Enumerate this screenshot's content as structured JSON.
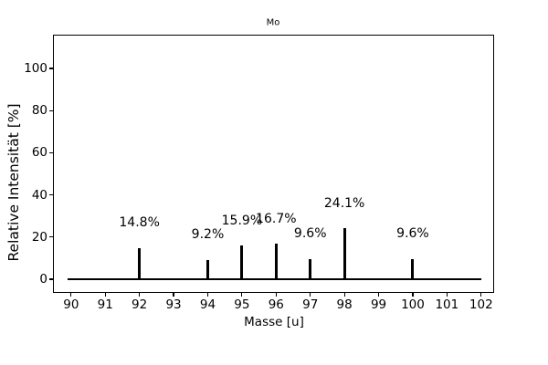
{
  "chart_data": {
    "type": "bar",
    "subtype": "stem",
    "title": "Mo",
    "xlabel": "Masse [u]",
    "ylabel": "Relative Intensität [%]",
    "x": [
      92,
      94,
      95,
      96,
      97,
      98,
      100
    ],
    "values": [
      14.8,
      9.2,
      15.9,
      16.7,
      9.6,
      24.1,
      9.6
    ],
    "point_labels": [
      "14.8%",
      "9.2%",
      "15.9%",
      "16.7%",
      "9.6%",
      "24.1%",
      "9.6%"
    ],
    "xticks": [
      90,
      91,
      92,
      93,
      94,
      95,
      96,
      97,
      98,
      99,
      100,
      101,
      102
    ],
    "yticks": [
      0,
      20,
      40,
      60,
      80,
      100
    ],
    "xlim": [
      89.47,
      102.38
    ],
    "ylim": [
      -6.3,
      116
    ],
    "baseline_value": 0,
    "baseline_x_range": [
      89.9,
      102.0
    ],
    "grid": false,
    "legend": null,
    "colors": {
      "stem": "#000000",
      "baseline": "#000000",
      "axes": "#000000",
      "text": "#000000",
      "background": "#ffffff"
    }
  }
}
